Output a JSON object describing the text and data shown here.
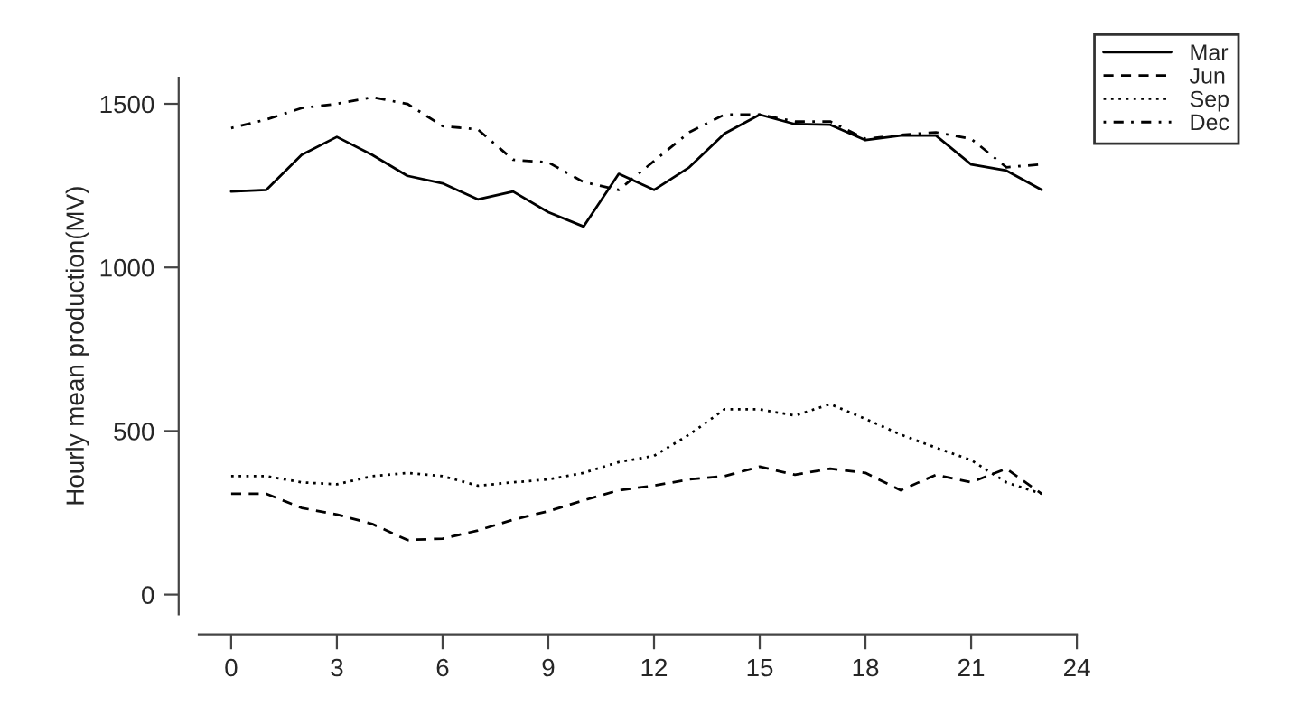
{
  "chart_data": {
    "type": "line",
    "ylabel": "Hourly mean production(MV)",
    "x": [
      0,
      1,
      2,
      3,
      4,
      5,
      6,
      7,
      8,
      9,
      10,
      11,
      12,
      13,
      14,
      15,
      16,
      17,
      18,
      19,
      20,
      21,
      22,
      23
    ],
    "series": [
      {
        "name": "Mar",
        "color": "#000000",
        "line_style": "solid",
        "values": [
          1232,
          1237,
          1344,
          1399,
          1344,
          1280,
          1257,
          1208,
          1232,
          1169,
          1125,
          1286,
          1237,
          1306,
          1409,
          1467,
          1438,
          1436,
          1389,
          1403,
          1403,
          1315,
          1296,
          1237
        ]
      },
      {
        "name": "Jun",
        "color": "#000000",
        "line_style": "dashed",
        "values": [
          308,
          308,
          265,
          245,
          216,
          167,
          171,
          196,
          229,
          255,
          288,
          319,
          333,
          352,
          362,
          391,
          366,
          385,
          372,
          319,
          366,
          343,
          385,
          308
        ]
      },
      {
        "name": "Sep",
        "color": "#000000",
        "line_style": "dotted",
        "values": [
          362,
          362,
          343,
          337,
          362,
          372,
          362,
          333,
          343,
          352,
          372,
          405,
          424,
          489,
          566,
          566,
          547,
          582,
          537,
          489,
          449,
          411,
          343,
          308
        ]
      },
      {
        "name": "Dec",
        "color": "#000000",
        "line_style": "dashdot",
        "values": [
          1426,
          1452,
          1487,
          1500,
          1520,
          1500,
          1432,
          1422,
          1329,
          1321,
          1261,
          1237,
          1325,
          1413,
          1467,
          1467,
          1446,
          1446,
          1393,
          1405,
          1413,
          1393,
          1306,
          1315
        ]
      }
    ],
    "xlim": [
      -0.92,
      24
    ],
    "xticks": [
      0,
      3,
      6,
      9,
      12,
      15,
      18,
      21,
      24
    ],
    "ylim": [
      -60,
      1580
    ],
    "yticks": [
      0,
      500,
      1000,
      1500
    ],
    "grid": false,
    "legend": "top right",
    "marker": "none"
  }
}
